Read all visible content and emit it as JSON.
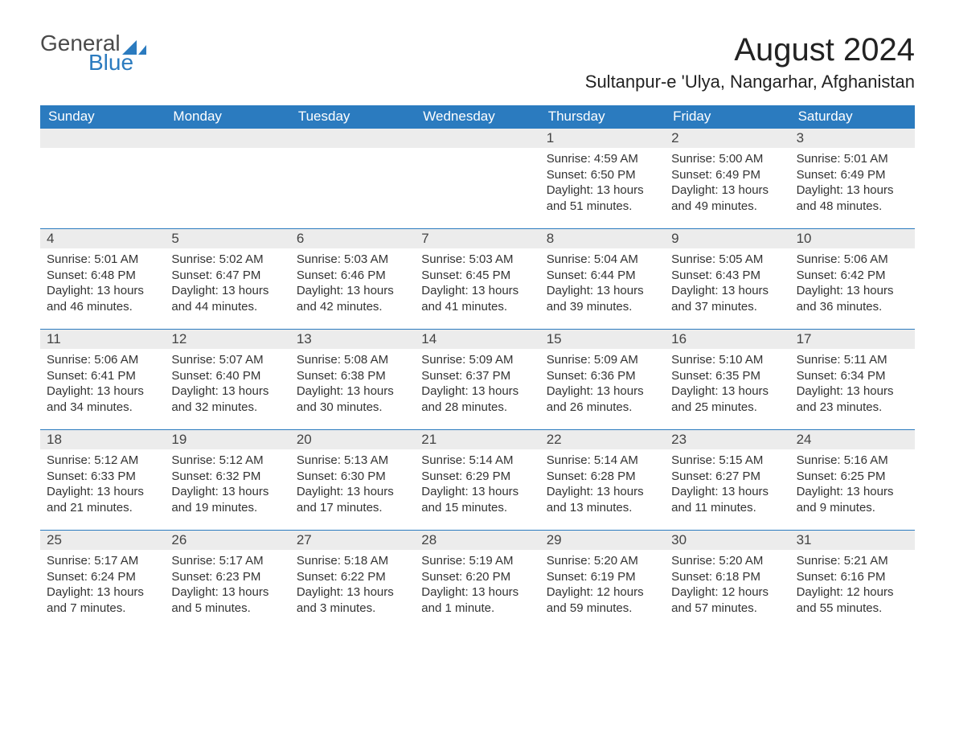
{
  "logo": {
    "text1": "General",
    "text2": "Blue",
    "mark_color": "#2b7bbf",
    "text1_color": "#4a4a4a"
  },
  "title": "August 2024",
  "location": "Sultanpur-e 'Ulya, Nangarhar, Afghanistan",
  "colors": {
    "header_bg": "#2b7bbf",
    "daynum_bg": "#ececec",
    "border": "#2b7bbf"
  },
  "dow": [
    "Sunday",
    "Monday",
    "Tuesday",
    "Wednesday",
    "Thursday",
    "Friday",
    "Saturday"
  ],
  "weeks": [
    [
      {
        "n": "",
        "sunrise": "",
        "sunset": "",
        "daylight": ""
      },
      {
        "n": "",
        "sunrise": "",
        "sunset": "",
        "daylight": ""
      },
      {
        "n": "",
        "sunrise": "",
        "sunset": "",
        "daylight": ""
      },
      {
        "n": "",
        "sunrise": "",
        "sunset": "",
        "daylight": ""
      },
      {
        "n": "1",
        "sunrise": "Sunrise: 4:59 AM",
        "sunset": "Sunset: 6:50 PM",
        "daylight": "Daylight: 13 hours and 51 minutes."
      },
      {
        "n": "2",
        "sunrise": "Sunrise: 5:00 AM",
        "sunset": "Sunset: 6:49 PM",
        "daylight": "Daylight: 13 hours and 49 minutes."
      },
      {
        "n": "3",
        "sunrise": "Sunrise: 5:01 AM",
        "sunset": "Sunset: 6:49 PM",
        "daylight": "Daylight: 13 hours and 48 minutes."
      }
    ],
    [
      {
        "n": "4",
        "sunrise": "Sunrise: 5:01 AM",
        "sunset": "Sunset: 6:48 PM",
        "daylight": "Daylight: 13 hours and 46 minutes."
      },
      {
        "n": "5",
        "sunrise": "Sunrise: 5:02 AM",
        "sunset": "Sunset: 6:47 PM",
        "daylight": "Daylight: 13 hours and 44 minutes."
      },
      {
        "n": "6",
        "sunrise": "Sunrise: 5:03 AM",
        "sunset": "Sunset: 6:46 PM",
        "daylight": "Daylight: 13 hours and 42 minutes."
      },
      {
        "n": "7",
        "sunrise": "Sunrise: 5:03 AM",
        "sunset": "Sunset: 6:45 PM",
        "daylight": "Daylight: 13 hours and 41 minutes."
      },
      {
        "n": "8",
        "sunrise": "Sunrise: 5:04 AM",
        "sunset": "Sunset: 6:44 PM",
        "daylight": "Daylight: 13 hours and 39 minutes."
      },
      {
        "n": "9",
        "sunrise": "Sunrise: 5:05 AM",
        "sunset": "Sunset: 6:43 PM",
        "daylight": "Daylight: 13 hours and 37 minutes."
      },
      {
        "n": "10",
        "sunrise": "Sunrise: 5:06 AM",
        "sunset": "Sunset: 6:42 PM",
        "daylight": "Daylight: 13 hours and 36 minutes."
      }
    ],
    [
      {
        "n": "11",
        "sunrise": "Sunrise: 5:06 AM",
        "sunset": "Sunset: 6:41 PM",
        "daylight": "Daylight: 13 hours and 34 minutes."
      },
      {
        "n": "12",
        "sunrise": "Sunrise: 5:07 AM",
        "sunset": "Sunset: 6:40 PM",
        "daylight": "Daylight: 13 hours and 32 minutes."
      },
      {
        "n": "13",
        "sunrise": "Sunrise: 5:08 AM",
        "sunset": "Sunset: 6:38 PM",
        "daylight": "Daylight: 13 hours and 30 minutes."
      },
      {
        "n": "14",
        "sunrise": "Sunrise: 5:09 AM",
        "sunset": "Sunset: 6:37 PM",
        "daylight": "Daylight: 13 hours and 28 minutes."
      },
      {
        "n": "15",
        "sunrise": "Sunrise: 5:09 AM",
        "sunset": "Sunset: 6:36 PM",
        "daylight": "Daylight: 13 hours and 26 minutes."
      },
      {
        "n": "16",
        "sunrise": "Sunrise: 5:10 AM",
        "sunset": "Sunset: 6:35 PM",
        "daylight": "Daylight: 13 hours and 25 minutes."
      },
      {
        "n": "17",
        "sunrise": "Sunrise: 5:11 AM",
        "sunset": "Sunset: 6:34 PM",
        "daylight": "Daylight: 13 hours and 23 minutes."
      }
    ],
    [
      {
        "n": "18",
        "sunrise": "Sunrise: 5:12 AM",
        "sunset": "Sunset: 6:33 PM",
        "daylight": "Daylight: 13 hours and 21 minutes."
      },
      {
        "n": "19",
        "sunrise": "Sunrise: 5:12 AM",
        "sunset": "Sunset: 6:32 PM",
        "daylight": "Daylight: 13 hours and 19 minutes."
      },
      {
        "n": "20",
        "sunrise": "Sunrise: 5:13 AM",
        "sunset": "Sunset: 6:30 PM",
        "daylight": "Daylight: 13 hours and 17 minutes."
      },
      {
        "n": "21",
        "sunrise": "Sunrise: 5:14 AM",
        "sunset": "Sunset: 6:29 PM",
        "daylight": "Daylight: 13 hours and 15 minutes."
      },
      {
        "n": "22",
        "sunrise": "Sunrise: 5:14 AM",
        "sunset": "Sunset: 6:28 PM",
        "daylight": "Daylight: 13 hours and 13 minutes."
      },
      {
        "n": "23",
        "sunrise": "Sunrise: 5:15 AM",
        "sunset": "Sunset: 6:27 PM",
        "daylight": "Daylight: 13 hours and 11 minutes."
      },
      {
        "n": "24",
        "sunrise": "Sunrise: 5:16 AM",
        "sunset": "Sunset: 6:25 PM",
        "daylight": "Daylight: 13 hours and 9 minutes."
      }
    ],
    [
      {
        "n": "25",
        "sunrise": "Sunrise: 5:17 AM",
        "sunset": "Sunset: 6:24 PM",
        "daylight": "Daylight: 13 hours and 7 minutes."
      },
      {
        "n": "26",
        "sunrise": "Sunrise: 5:17 AM",
        "sunset": "Sunset: 6:23 PM",
        "daylight": "Daylight: 13 hours and 5 minutes."
      },
      {
        "n": "27",
        "sunrise": "Sunrise: 5:18 AM",
        "sunset": "Sunset: 6:22 PM",
        "daylight": "Daylight: 13 hours and 3 minutes."
      },
      {
        "n": "28",
        "sunrise": "Sunrise: 5:19 AM",
        "sunset": "Sunset: 6:20 PM",
        "daylight": "Daylight: 13 hours and 1 minute."
      },
      {
        "n": "29",
        "sunrise": "Sunrise: 5:20 AM",
        "sunset": "Sunset: 6:19 PM",
        "daylight": "Daylight: 12 hours and 59 minutes."
      },
      {
        "n": "30",
        "sunrise": "Sunrise: 5:20 AM",
        "sunset": "Sunset: 6:18 PM",
        "daylight": "Daylight: 12 hours and 57 minutes."
      },
      {
        "n": "31",
        "sunrise": "Sunrise: 5:21 AM",
        "sunset": "Sunset: 6:16 PM",
        "daylight": "Daylight: 12 hours and 55 minutes."
      }
    ]
  ]
}
